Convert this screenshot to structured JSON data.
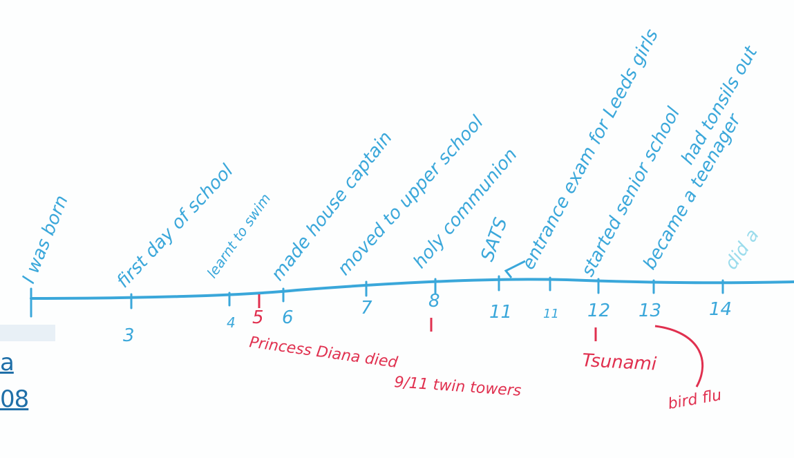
{
  "events_above": [
    "I was born",
    "first day of school",
    "learnt to swim",
    "made house captain",
    "moved to upper school",
    "holy communion",
    "SATS",
    "entrance exam for Leeds girls",
    "started senior school",
    "became a teenager",
    "had tonsils out",
    "did a"
  ],
  "ages": [
    "3",
    "4",
    "5",
    "6",
    "7",
    "8",
    "11",
    "11",
    "12",
    "13",
    "14"
  ],
  "events_below": [
    "Princess Diana died",
    "9/11 twin towers",
    "Tsunami",
    "bird flu"
  ],
  "link_fragment": [
    "a",
    "08"
  ],
  "colors": {
    "ink_blue": "#3aa7da",
    "ink_red": "#e0304f",
    "faded": "#9bdcec"
  }
}
